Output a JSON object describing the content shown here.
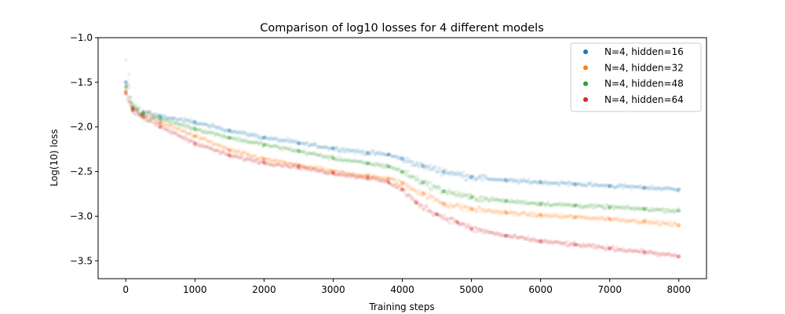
{
  "chart_data": {
    "type": "scatter",
    "title": "Comparison of log10 losses for 4 different models",
    "xlabel": "Training steps",
    "ylabel": "Log(10) loss",
    "xlim": [
      -400,
      8400
    ],
    "ylim": [
      -3.7,
      -1.0
    ],
    "xticks": [
      0,
      1000,
      2000,
      3000,
      4000,
      5000,
      6000,
      7000,
      8000
    ],
    "yticks": [
      -3.5,
      -3.0,
      -2.5,
      -2.0,
      -1.5,
      -1.0
    ],
    "grid": false,
    "legend_position": "top-right",
    "series": [
      {
        "name": "N=4, hidden=16",
        "color": "#1f77b4",
        "x": [
          0,
          100,
          250,
          500,
          1000,
          1500,
          2000,
          2500,
          3000,
          3500,
          3800,
          4000,
          4300,
          4600,
          5000,
          5500,
          6000,
          6500,
          7000,
          7500,
          8000
        ],
        "y": [
          -1.5,
          -1.78,
          -1.84,
          -1.88,
          -1.95,
          -2.04,
          -2.12,
          -2.18,
          -2.24,
          -2.29,
          -2.31,
          -2.36,
          -2.44,
          -2.5,
          -2.56,
          -2.6,
          -2.62,
          -2.64,
          -2.66,
          -2.68,
          -2.7
        ]
      },
      {
        "name": "N=4, hidden=32",
        "color": "#ff7f0e",
        "x": [
          0,
          100,
          250,
          500,
          1000,
          1500,
          2000,
          2500,
          3000,
          3500,
          3800,
          4000,
          4300,
          4600,
          5000,
          5500,
          6000,
          6500,
          7000,
          7500,
          8000
        ],
        "y": [
          -1.6,
          -1.8,
          -1.86,
          -1.95,
          -2.1,
          -2.26,
          -2.36,
          -2.43,
          -2.5,
          -2.55,
          -2.58,
          -2.63,
          -2.75,
          -2.86,
          -2.92,
          -2.96,
          -2.99,
          -3.01,
          -3.03,
          -3.06,
          -3.1
        ]
      },
      {
        "name": "N=4, hidden=48",
        "color": "#2ca02c",
        "x": [
          0,
          100,
          250,
          500,
          1000,
          1500,
          2000,
          2500,
          3000,
          3500,
          3800,
          4000,
          4300,
          4600,
          5000,
          5500,
          6000,
          6500,
          7000,
          7500,
          8000
        ],
        "y": [
          -1.55,
          -1.79,
          -1.85,
          -1.91,
          -2.02,
          -2.12,
          -2.2,
          -2.27,
          -2.35,
          -2.41,
          -2.44,
          -2.5,
          -2.62,
          -2.72,
          -2.79,
          -2.83,
          -2.86,
          -2.88,
          -2.9,
          -2.92,
          -2.94
        ]
      },
      {
        "name": "N=4, hidden=64",
        "color": "#d62728",
        "x": [
          0,
          100,
          250,
          500,
          1000,
          1500,
          2000,
          2500,
          3000,
          3500,
          3800,
          4000,
          4200,
          4500,
          4800,
          5000,
          5500,
          6000,
          6500,
          7000,
          7500,
          8000
        ],
        "y": [
          -1.62,
          -1.81,
          -1.88,
          -2.0,
          -2.18,
          -2.32,
          -2.4,
          -2.45,
          -2.52,
          -2.57,
          -2.62,
          -2.7,
          -2.85,
          -2.98,
          -3.07,
          -3.14,
          -3.22,
          -3.28,
          -3.32,
          -3.36,
          -3.4,
          -3.45
        ]
      }
    ]
  }
}
